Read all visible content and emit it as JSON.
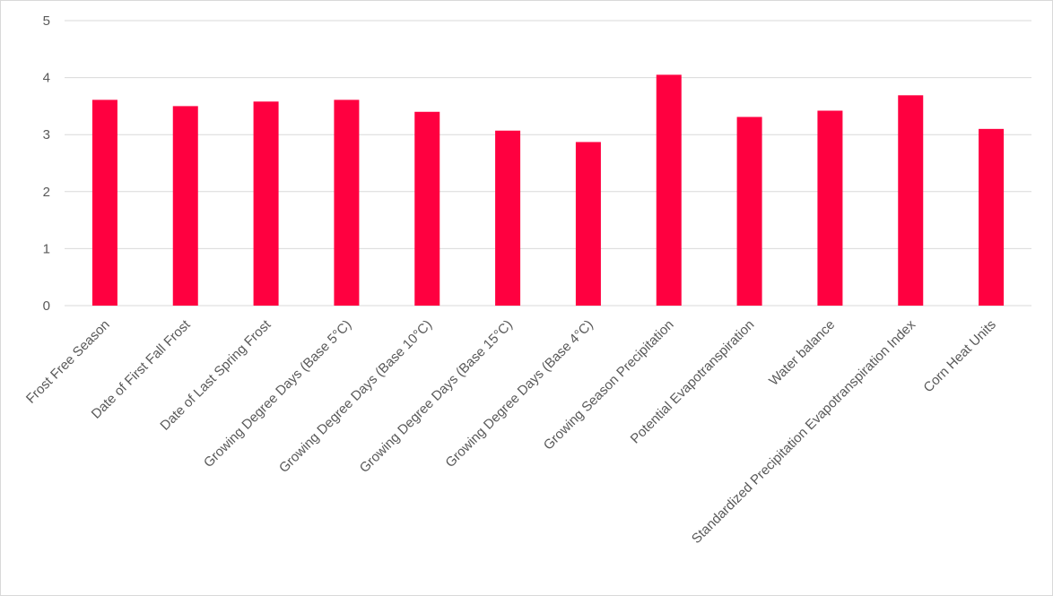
{
  "chart_data": {
    "type": "bar",
    "title": "",
    "xlabel": "",
    "ylabel": "",
    "ylim": [
      0,
      5
    ],
    "yticks": [
      0,
      1,
      2,
      3,
      4,
      5
    ],
    "grid": true,
    "bar_color": "#FF0040",
    "categories": [
      "Frost Free Season",
      "Date of First Fall Frost",
      "Date of Last Spring Frost",
      "Growing Degree Days (Base 5°C)",
      "Growing Degree Days (Base 10°C)",
      "Growing Degree Days (Base 15°C)",
      "Growing Degree Days (Base 4°C)",
      "Growing Season Precipitation",
      "Potential Evapotranspiration",
      "Water balance",
      "Standardized Precipitation Evapotranspiration Index",
      "Corn Heat Units"
    ],
    "values": [
      3.61,
      3.5,
      3.58,
      3.61,
      3.4,
      3.07,
      2.87,
      4.05,
      3.31,
      3.42,
      3.69,
      3.1
    ]
  }
}
